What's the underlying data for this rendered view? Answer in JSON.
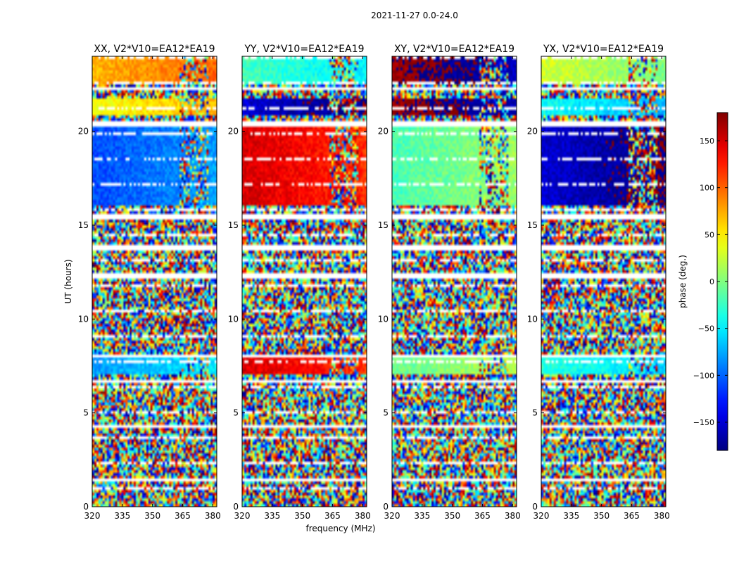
{
  "chart_data": {
    "type": "heatmap",
    "suptitle": "2021-11-27 0.0-24.0",
    "xlabel": "frequency (MHz)",
    "ylabel": "UT (hours)",
    "xlim": [
      320,
      382
    ],
    "ylim": [
      0,
      24
    ],
    "x_ticks": [
      "320",
      "335",
      "350",
      "365",
      "380"
    ],
    "y_ticks": [
      "0",
      "5",
      "10",
      "15",
      "20"
    ],
    "panels": [
      {
        "title": "XX, V2*V10=EA12*EA19",
        "coherent": [
          [
            16.1,
            20.2,
            -110
          ],
          [
            20.8,
            21.8,
            40
          ],
          [
            22.5,
            24,
            70
          ],
          [
            7.0,
            8.0,
            -80
          ]
        ]
      },
      {
        "title": "YY, V2*V10=EA12*EA19",
        "coherent": [
          [
            16.1,
            20.2,
            150
          ],
          [
            20.8,
            21.8,
            -150
          ],
          [
            22.5,
            24,
            -20
          ],
          [
            7.0,
            8.0,
            150
          ]
        ]
      },
      {
        "title": "XY, V2*V10=EA12*EA19",
        "coherent": [
          [
            16.1,
            20.2,
            -20
          ],
          [
            20.8,
            21.8,
            170
          ],
          [
            22.5,
            24,
            170
          ],
          [
            7.0,
            8.0,
            -10
          ]
        ]
      },
      {
        "title": "YX, V2*V10=EA12*EA19",
        "coherent": [
          [
            16.1,
            20.2,
            -150
          ],
          [
            20.8,
            21.8,
            -40
          ],
          [
            22.5,
            24,
            30
          ],
          [
            7.0,
            8.0,
            -30
          ]
        ]
      }
    ],
    "flagged_ut_ranges": [
      [
        1.3,
        1.5
      ],
      [
        4.2,
        4.3
      ],
      [
        6.6,
        6.8
      ],
      [
        8.0,
        8.1
      ],
      [
        12.2,
        12.5
      ],
      [
        13.7,
        13.9
      ],
      [
        15.3,
        15.6
      ],
      [
        20.3,
        20.5
      ],
      [
        22.2,
        22.3
      ]
    ],
    "colorbar": {
      "label": "phase (deg.)",
      "range": [
        -180,
        180
      ],
      "ticks": [
        "150",
        "100",
        "50",
        "0",
        "−50",
        "−100",
        "−150"
      ],
      "tick_values": [
        150,
        100,
        50,
        0,
        -50,
        -100,
        -150
      ],
      "colormap": "jet"
    }
  }
}
